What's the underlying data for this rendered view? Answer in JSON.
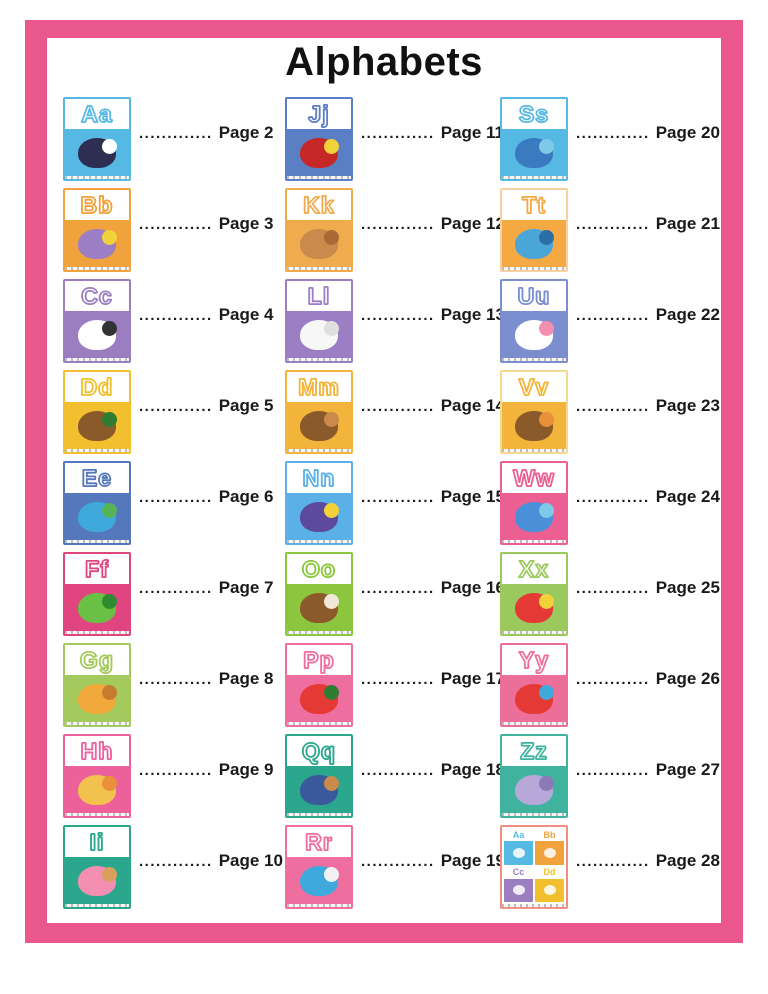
{
  "page": {
    "title": "Alphabets",
    "frame_color": "#e9578c",
    "leader_dots": "............."
  },
  "toc": {
    "columns": [
      {
        "entries": [
          {
            "letters": "Aa",
            "page_label": "Page 2",
            "art_name": "astronaut",
            "color": "#56b9e4",
            "art": [
              "#2e2d52",
              "#ffffff"
            ]
          },
          {
            "letters": "Bb",
            "page_label": "Page 3",
            "art_name": "beach-ball",
            "color": "#f0a23c",
            "art": [
              "#9b7ec4",
              "#f2d23a"
            ]
          },
          {
            "letters": "Cc",
            "page_label": "Page 4",
            "art_name": "cow",
            "color": "#9b7ec0",
            "art": [
              "#ffffff",
              "#333333"
            ]
          },
          {
            "letters": "Dd",
            "page_label": "Page 5",
            "art_name": "duck",
            "color": "#f2bf2e",
            "art": [
              "#8a5a2b",
              "#2e7d32"
            ]
          },
          {
            "letters": "Ee",
            "page_label": "Page 6",
            "art_name": "earth",
            "color": "#5577bb",
            "art": [
              "#3fa9dc",
              "#57b35a"
            ]
          },
          {
            "letters": "Ff",
            "page_label": "Page 7",
            "art_name": "frog",
            "color": "#e0457f",
            "art": [
              "#6abf45",
              "#2e8b2e"
            ]
          },
          {
            "letters": "Gg",
            "page_label": "Page 8",
            "art_name": "giraffe",
            "color": "#a4c95c",
            "art": [
              "#f2a93b",
              "#c77b2e"
            ]
          },
          {
            "letters": "Hh",
            "page_label": "Page 9",
            "art_name": "hat",
            "color": "#ec619c",
            "art": [
              "#f2c14e",
              "#e8903a"
            ]
          },
          {
            "letters": "Ii",
            "page_label": "Page 10",
            "art_name": "ice-cream",
            "color": "#2aa78c",
            "art": [
              "#f48fb1",
              "#d9a05b"
            ]
          }
        ]
      },
      {
        "entries": [
          {
            "letters": "Jj",
            "page_label": "Page 11",
            "art_name": "jam-jar",
            "color": "#5b7fc4",
            "art": [
              "#c62828",
              "#f2d23a"
            ]
          },
          {
            "letters": "Kk",
            "page_label": "Page 12",
            "art_name": "kangaroo",
            "color": "#f0ab4e",
            "art": [
              "#c98a4b",
              "#a96a33"
            ]
          },
          {
            "letters": "Ll",
            "page_label": "Page 13",
            "art_name": "lamb",
            "color": "#9b7ec4",
            "art": [
              "#f7f7f7",
              "#e0dede"
            ]
          },
          {
            "letters": "Mm",
            "page_label": "Page 14",
            "art_name": "monkey",
            "color": "#f2b43a",
            "art": [
              "#8a5a2b",
              "#c98a4b"
            ]
          },
          {
            "letters": "Nn",
            "page_label": "Page 15",
            "art_name": "night-sky",
            "color": "#5cb0e8",
            "art": [
              "#5c4a9c",
              "#f2d23a"
            ]
          },
          {
            "letters": "Oo",
            "page_label": "Page 16",
            "art_name": "owl",
            "color": "#8cc63f",
            "art": [
              "#8a5a2b",
              "#f2e8d8"
            ]
          },
          {
            "letters": "Pp",
            "page_label": "Page 17",
            "art_name": "parrot",
            "color": "#ee6f9f",
            "art": [
              "#e53935",
              "#2e7d32"
            ]
          },
          {
            "letters": "Qq",
            "page_label": "Page 18",
            "art_name": "queen",
            "color": "#2aa78c",
            "art": [
              "#3a5a9c",
              "#c98a4b"
            ]
          },
          {
            "letters": "Rr",
            "page_label": "Page 19",
            "art_name": "rocket",
            "color": "#ee6f9f",
            "art": [
              "#3fa9dc",
              "#f2f2f2"
            ]
          }
        ]
      },
      {
        "entries": [
          {
            "letters": "Ss",
            "page_label": "Page 20",
            "art_name": "snake",
            "color": "#56b9e4",
            "art": [
              "#3a7abf",
              "#7ec8e8"
            ]
          },
          {
            "letters": "Tt",
            "page_label": "Page 21",
            "art_name": "train",
            "color": "#f5a943",
            "border": "#f7cfa0",
            "art": [
              "#4aa6d8",
              "#2a6ea6"
            ]
          },
          {
            "letters": "Uu",
            "page_label": "Page 22",
            "art_name": "unicorn",
            "color": "#7b8fd0",
            "art": [
              "#ffffff",
              "#f48fb1"
            ]
          },
          {
            "letters": "Vv",
            "page_label": "Page 23",
            "art_name": "volcano",
            "color": "#f2b43a",
            "border": "#f5d98e",
            "art": [
              "#8a5a2b",
              "#e8903a"
            ]
          },
          {
            "letters": "Ww",
            "page_label": "Page 24",
            "art_name": "whale",
            "color": "#ec5f92",
            "art": [
              "#4a90d9",
              "#7ec8e8"
            ]
          },
          {
            "letters": "Xx",
            "page_label": "Page 25",
            "art_name": "xylophone",
            "color": "#9bc95e",
            "art": [
              "#e53935",
              "#f2d23a"
            ]
          },
          {
            "letters": "Yy",
            "page_label": "Page 26",
            "art_name": "yo-yo",
            "color": "#ec6f9a",
            "art": [
              "#e53935",
              "#3fa9dc"
            ]
          },
          {
            "letters": "Zz",
            "page_label": "Page 27",
            "art_name": "zipper",
            "color": "#3fb39e",
            "art": [
              "#b8a8d9",
              "#8a7ab8"
            ]
          },
          {
            "letters": "",
            "page_label": "Page 28",
            "art_name": "alphabet-cover",
            "type": "cover-grid",
            "color": "#ef8f7f",
            "minis": [
              {
                "letters": "Aa",
                "color": "#56b9e4"
              },
              {
                "letters": "Bb",
                "color": "#f0a23c"
              },
              {
                "letters": "Cc",
                "color": "#9b7ec0"
              },
              {
                "letters": "Dd",
                "color": "#f2bf2e"
              }
            ]
          }
        ]
      }
    ]
  }
}
